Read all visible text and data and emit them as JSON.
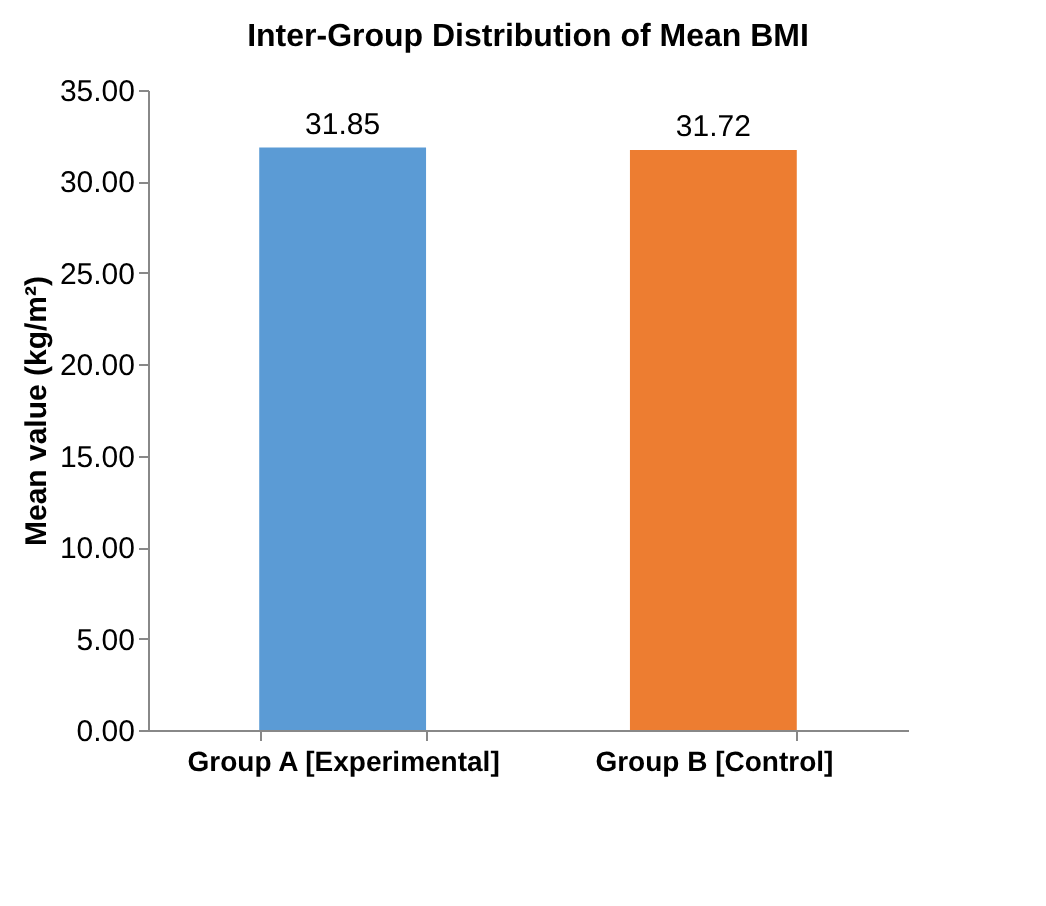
{
  "chart_data": {
    "type": "bar",
    "title": "Inter-Group Distribution of Mean BMI",
    "ylabel": "Mean value (kg/m²)",
    "categories": [
      "Group A [Experimental]",
      "Group B [Control]"
    ],
    "values": [
      31.85,
      31.72
    ],
    "colors": [
      "#5b9bd5",
      "#ed7d31"
    ],
    "ylim": [
      0,
      35
    ],
    "yticks": [
      {
        "value": 0,
        "label": "0.00"
      },
      {
        "value": 5,
        "label": "5.00"
      },
      {
        "value": 10,
        "label": "10.00"
      },
      {
        "value": 15,
        "label": "15.00"
      },
      {
        "value": 20,
        "label": "20.00"
      },
      {
        "value": 25,
        "label": "25.00"
      },
      {
        "value": 30,
        "label": "30.00"
      },
      {
        "value": 35,
        "label": "35.00"
      }
    ],
    "data_labels": true,
    "grid": false,
    "legend": false
  }
}
